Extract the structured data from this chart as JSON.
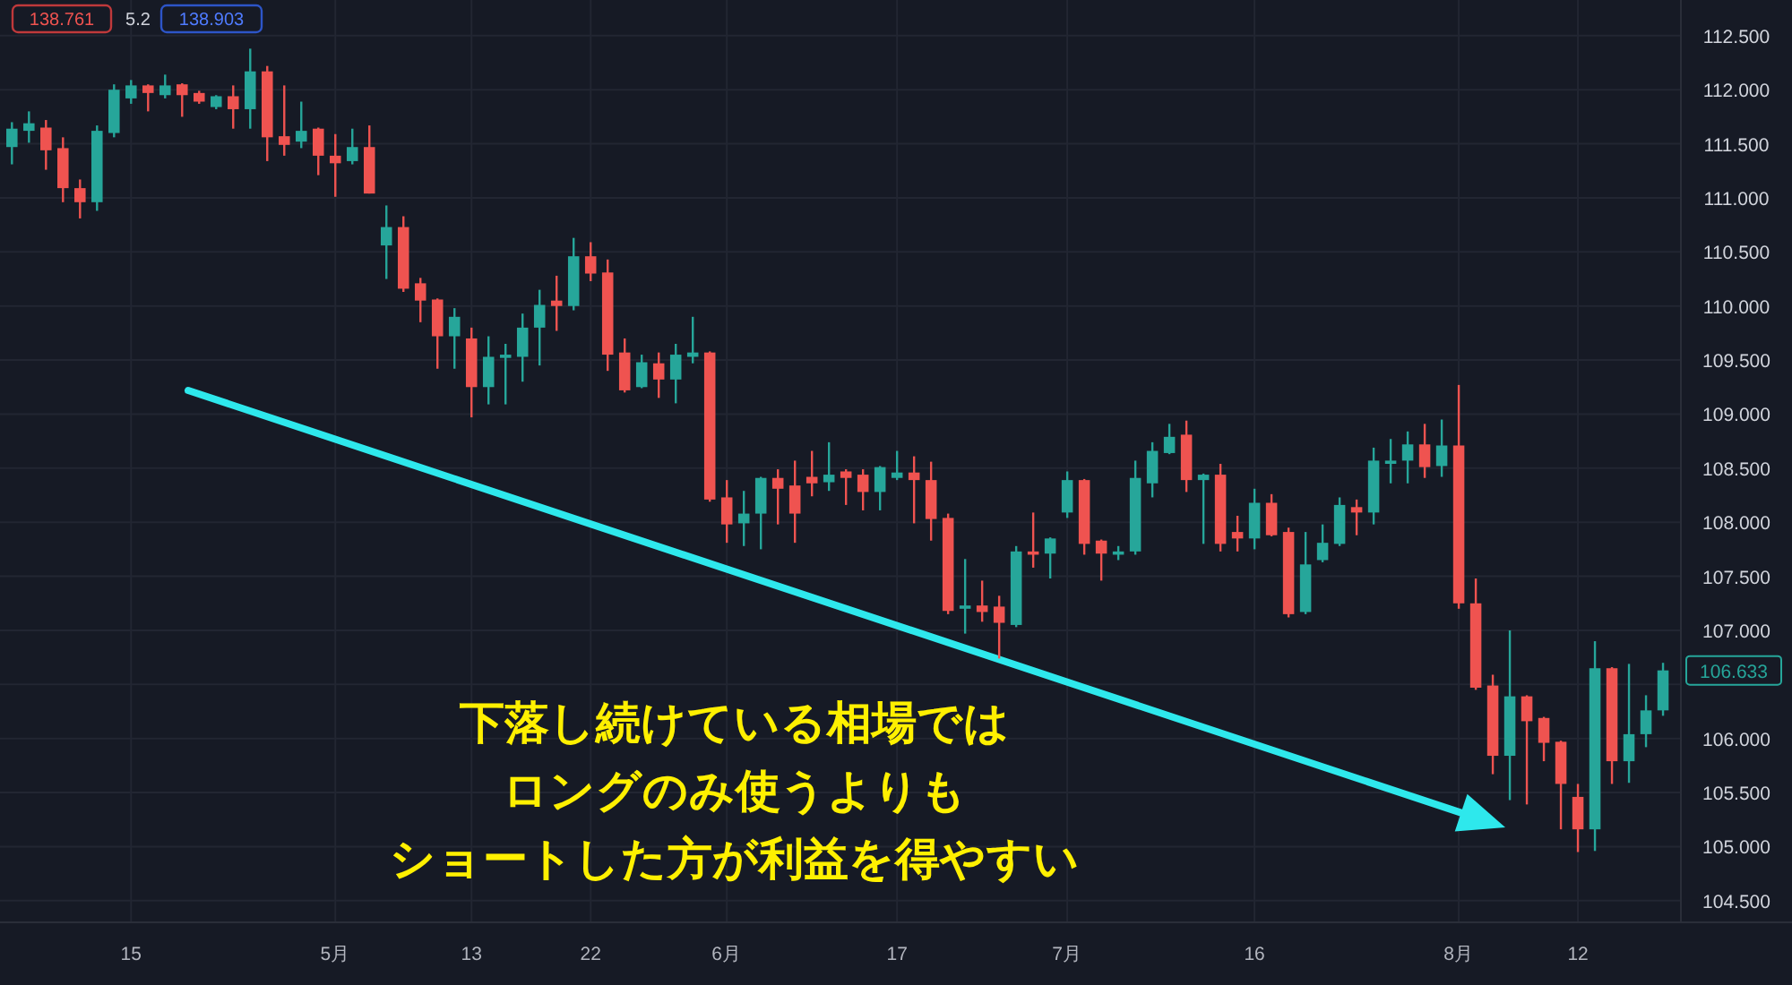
{
  "chart_data": {
    "type": "candlestick",
    "categories": [
      null,
      null,
      null,
      null,
      null,
      null,
      null,
      "15",
      null,
      null,
      null,
      null,
      null,
      null,
      null,
      null,
      null,
      null,
      null,
      "5月",
      null,
      null,
      null,
      null,
      null,
      null,
      null,
      "13",
      null,
      null,
      null,
      null,
      null,
      null,
      "22",
      null,
      null,
      null,
      null,
      null,
      null,
      null,
      "6月",
      null,
      null,
      null,
      null,
      null,
      null,
      null,
      null,
      null,
      "17",
      null,
      null,
      null,
      null,
      null,
      null,
      null,
      null,
      null,
      "7月",
      null,
      null,
      null,
      null,
      null,
      null,
      null,
      null,
      null,
      null,
      "16",
      null,
      null,
      null,
      null,
      null,
      null,
      null,
      null,
      null,
      null,
      null,
      "8月",
      null,
      null,
      null,
      null,
      null,
      null,
      "12",
      null,
      null,
      null,
      null,
      null
    ],
    "ohlc": [
      [
        111.47,
        111.7,
        111.31,
        111.64
      ],
      [
        111.62,
        111.8,
        111.51,
        111.69
      ],
      [
        111.65,
        111.72,
        111.26,
        111.44
      ],
      [
        111.46,
        111.56,
        110.96,
        111.09
      ],
      [
        111.09,
        111.17,
        110.81,
        110.96
      ],
      [
        110.96,
        111.67,
        110.88,
        111.62
      ],
      [
        111.6,
        112.05,
        111.56,
        112.0
      ],
      [
        111.92,
        112.09,
        111.87,
        112.04
      ],
      [
        112.04,
        112.05,
        111.8,
        111.97
      ],
      [
        111.95,
        112.14,
        111.92,
        112.04
      ],
      [
        112.05,
        112.06,
        111.75,
        111.95
      ],
      [
        111.97,
        111.99,
        111.87,
        111.89
      ],
      [
        111.84,
        111.95,
        111.82,
        111.94
      ],
      [
        111.94,
        112.04,
        111.64,
        111.82
      ],
      [
        111.82,
        112.38,
        111.64,
        112.17
      ],
      [
        112.17,
        112.22,
        111.34,
        111.56
      ],
      [
        111.57,
        112.04,
        111.39,
        111.49
      ],
      [
        111.52,
        111.89,
        111.46,
        111.62
      ],
      [
        111.64,
        111.65,
        111.21,
        111.39
      ],
      [
        111.39,
        111.59,
        111.01,
        111.32
      ],
      [
        111.34,
        111.64,
        111.31,
        111.47
      ],
      [
        111.47,
        111.67,
        111.04,
        111.04
      ],
      [
        110.56,
        110.93,
        110.25,
        110.73
      ],
      [
        110.73,
        110.83,
        110.13,
        110.16
      ],
      [
        110.21,
        110.26,
        109.85,
        110.05
      ],
      [
        110.06,
        110.07,
        109.42,
        109.72
      ],
      [
        109.72,
        109.98,
        109.42,
        109.9
      ],
      [
        109.7,
        109.8,
        108.97,
        109.25
      ],
      [
        109.25,
        109.72,
        109.09,
        109.53
      ],
      [
        109.52,
        109.65,
        109.09,
        109.55
      ],
      [
        109.53,
        109.93,
        109.3,
        109.8
      ],
      [
        109.8,
        110.15,
        109.45,
        110.01
      ],
      [
        110.05,
        110.28,
        109.77,
        110.0
      ],
      [
        110.0,
        110.63,
        109.96,
        110.46
      ],
      [
        110.46,
        110.59,
        110.23,
        110.3
      ],
      [
        110.31,
        110.43,
        109.4,
        109.55
      ],
      [
        109.57,
        109.7,
        109.2,
        109.22
      ],
      [
        109.25,
        109.55,
        109.24,
        109.48
      ],
      [
        109.47,
        109.57,
        109.15,
        109.32
      ],
      [
        109.32,
        109.65,
        109.1,
        109.55
      ],
      [
        109.53,
        109.9,
        109.47,
        109.57
      ],
      [
        109.57,
        109.58,
        108.19,
        108.21
      ],
      [
        108.23,
        108.39,
        107.81,
        107.98
      ],
      [
        107.99,
        108.29,
        107.78,
        108.08
      ],
      [
        108.08,
        108.42,
        107.75,
        108.41
      ],
      [
        108.41,
        108.49,
        107.98,
        108.31
      ],
      [
        108.34,
        108.57,
        107.81,
        108.08
      ],
      [
        108.42,
        108.66,
        108.24,
        108.36
      ],
      [
        108.37,
        108.74,
        108.29,
        108.44
      ],
      [
        108.47,
        108.49,
        108.16,
        108.41
      ],
      [
        108.44,
        108.49,
        108.11,
        108.28
      ],
      [
        108.28,
        108.52,
        108.11,
        108.51
      ],
      [
        108.41,
        108.66,
        108.39,
        108.46
      ],
      [
        108.46,
        108.61,
        107.99,
        108.39
      ],
      [
        108.39,
        108.56,
        107.83,
        108.03
      ],
      [
        108.04,
        108.08,
        107.15,
        107.18
      ],
      [
        107.2,
        107.66,
        106.97,
        107.23
      ],
      [
        107.23,
        107.46,
        107.08,
        107.17
      ],
      [
        107.22,
        107.32,
        106.74,
        107.07
      ],
      [
        107.05,
        107.78,
        107.03,
        107.73
      ],
      [
        107.73,
        108.09,
        107.58,
        107.7
      ],
      [
        107.71,
        107.86,
        107.48,
        107.85
      ],
      [
        108.09,
        108.47,
        108.04,
        108.39
      ],
      [
        108.39,
        108.4,
        107.7,
        107.8
      ],
      [
        107.83,
        107.84,
        107.46,
        107.71
      ],
      [
        107.7,
        107.78,
        107.65,
        107.73
      ],
      [
        107.73,
        108.57,
        107.7,
        108.41
      ],
      [
        108.36,
        108.74,
        108.23,
        108.66
      ],
      [
        108.64,
        108.91,
        108.63,
        108.79
      ],
      [
        108.81,
        108.94,
        108.28,
        108.39
      ],
      [
        108.39,
        108.45,
        107.8,
        108.44
      ],
      [
        108.44,
        108.54,
        107.73,
        107.8
      ],
      [
        107.91,
        108.06,
        107.73,
        107.85
      ],
      [
        107.85,
        108.31,
        107.75,
        108.18
      ],
      [
        108.18,
        108.26,
        107.87,
        107.88
      ],
      [
        107.91,
        107.95,
        107.12,
        107.15
      ],
      [
        107.17,
        107.91,
        107.15,
        107.61
      ],
      [
        107.65,
        107.98,
        107.63,
        107.81
      ],
      [
        107.8,
        108.23,
        107.78,
        108.16
      ],
      [
        108.14,
        108.21,
        107.88,
        108.09
      ],
      [
        108.09,
        108.69,
        107.98,
        108.57
      ],
      [
        108.54,
        108.77,
        108.36,
        108.57
      ],
      [
        108.57,
        108.84,
        108.36,
        108.72
      ],
      [
        108.72,
        108.91,
        108.41,
        108.51
      ],
      [
        108.52,
        108.95,
        108.42,
        108.71
      ],
      [
        108.71,
        109.27,
        107.2,
        107.25
      ],
      [
        107.25,
        107.48,
        106.45,
        106.47
      ],
      [
        106.49,
        106.59,
        105.67,
        105.84
      ],
      [
        105.84,
        107.0,
        105.43,
        106.39
      ],
      [
        106.39,
        106.4,
        105.39,
        106.16
      ],
      [
        106.19,
        106.2,
        105.79,
        105.96
      ],
      [
        105.97,
        105.98,
        105.16,
        105.58
      ],
      [
        105.46,
        105.58,
        104.95,
        105.16
      ],
      [
        105.16,
        106.9,
        104.96,
        106.65
      ],
      [
        106.65,
        106.66,
        105.58,
        105.79
      ],
      [
        105.79,
        106.69,
        105.59,
        106.04
      ],
      [
        106.04,
        106.4,
        105.92,
        106.26
      ],
      [
        106.26,
        106.7,
        106.21,
        106.63
      ]
    ],
    "colors": [
      "#26a69a",
      "#26a69a",
      "#ef5350",
      "#ef5350",
      "#ef5350",
      "#26a69a",
      "#26a69a",
      "#26a69a",
      "#ef5350",
      "#26a69a",
      "#ef5350",
      "#ef5350",
      "#26a69a",
      "#ef5350",
      "#26a69a",
      "#ef5350",
      "#ef5350",
      "#26a69a",
      "#ef5350",
      "#ef5350",
      "#26a69a",
      "#ef5350",
      "#26a69a",
      "#ef5350",
      "#ef5350",
      "#ef5350",
      "#26a69a",
      "#ef5350",
      "#26a69a",
      "#26a69a",
      "#26a69a",
      "#26a69a",
      "#ef5350",
      "#26a69a",
      "#ef5350",
      "#ef5350",
      "#ef5350",
      "#26a69a",
      "#ef5350",
      "#26a69a",
      "#26a69a",
      "#ef5350",
      "#ef5350",
      "#26a69a",
      "#26a69a",
      "#ef5350",
      "#ef5350",
      "#ef5350",
      "#26a69a",
      "#ef5350",
      "#ef5350",
      "#26a69a",
      "#26a69a",
      "#ef5350",
      "#ef5350",
      "#ef5350",
      "#26a69a",
      "#ef5350",
      "#ef5350",
      "#26a69a",
      "#ef5350",
      "#26a69a",
      "#26a69a",
      "#ef5350",
      "#ef5350",
      "#26a69a",
      "#26a69a",
      "#26a69a",
      "#26a69a",
      "#ef5350",
      "#26a69a",
      "#ef5350",
      "#ef5350",
      "#26a69a",
      "#ef5350",
      "#ef5350",
      "#26a69a",
      "#26a69a",
      "#26a69a",
      "#ef5350",
      "#26a69a",
      "#26a69a",
      "#26a69a",
      "#ef5350",
      "#26a69a",
      "#ef5350",
      "#ef5350",
      "#ef5350",
      "#26a69a",
      "#ef5350",
      "#ef5350",
      "#ef5350",
      "#ef5350",
      "#26a69a",
      "#ef5350",
      "#26a69a",
      "#26a69a",
      "#26a69a"
    ],
    "ylim": [
      104.3,
      112.83
    ],
    "yticks": [
      {
        "value": 104.5,
        "label": "104.500"
      },
      {
        "value": 105,
        "label": "105.000"
      },
      {
        "value": 105.5,
        "label": "105.500"
      },
      {
        "value": 106,
        "label": "106.000"
      },
      {
        "value": 106.5,
        "label": null
      },
      {
        "value": 107,
        "label": "107.000"
      },
      {
        "value": 107.5,
        "label": "107.500"
      },
      {
        "value": 108,
        "label": "108.000"
      },
      {
        "value": 108.5,
        "label": "108.500"
      },
      {
        "value": 109,
        "label": "109.000"
      },
      {
        "value": 109.5,
        "label": "109.500"
      },
      {
        "value": 110,
        "label": "110.000"
      },
      {
        "value": 110.5,
        "label": "110.500"
      },
      {
        "value": 111,
        "label": "111.000"
      },
      {
        "value": 111.5,
        "label": "111.500"
      },
      {
        "value": 112,
        "label": "112.000"
      },
      {
        "value": 112.5,
        "label": "112.500"
      }
    ],
    "grid": true,
    "annotations": [
      "106.633",
      "138.761",
      "5.2",
      "138.903",
      "下落し続けている相場では",
      "ロングのみ使うよりも",
      "ショートした方が利益を得やすい"
    ]
  }
}
